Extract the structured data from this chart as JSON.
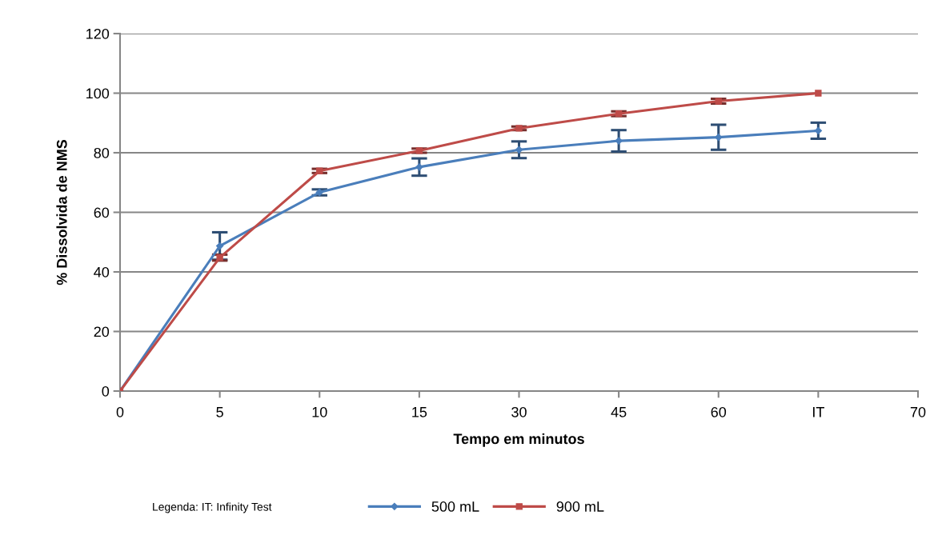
{
  "chart_data": {
    "type": "line",
    "xlabel": "Tempo em minutos",
    "ylabel": "% Dissolvida de NMS",
    "categories": [
      "0",
      "5",
      "10",
      "15",
      "30",
      "45",
      "60",
      "IT",
      "70"
    ],
    "series": [
      {
        "name": "500 mL",
        "color": "#4a7ebb",
        "marker": "diamond",
        "values": [
          0,
          48.7,
          66.7,
          75.2,
          81.0,
          84.0,
          85.2,
          87.4,
          null
        ],
        "errors": [
          null,
          4.6,
          1.0,
          2.9,
          2.8,
          3.6,
          4.2,
          2.7,
          null
        ]
      },
      {
        "name": "900 mL",
        "color": "#be4b48",
        "marker": "square",
        "values": [
          0,
          44.8,
          73.9,
          80.7,
          88.2,
          93.1,
          97.3,
          100,
          null
        ],
        "errors": [
          null,
          1.0,
          0.7,
          0.7,
          0.6,
          0.8,
          0.8,
          null,
          null
        ]
      }
    ],
    "ylim": [
      0,
      120
    ],
    "yticks": [
      0,
      20,
      40,
      60,
      80,
      100,
      120
    ],
    "grid": "y",
    "legend": "bottom",
    "line_style": "solid",
    "annotations": [
      "Legenda: IT: Infinity Test"
    ]
  }
}
